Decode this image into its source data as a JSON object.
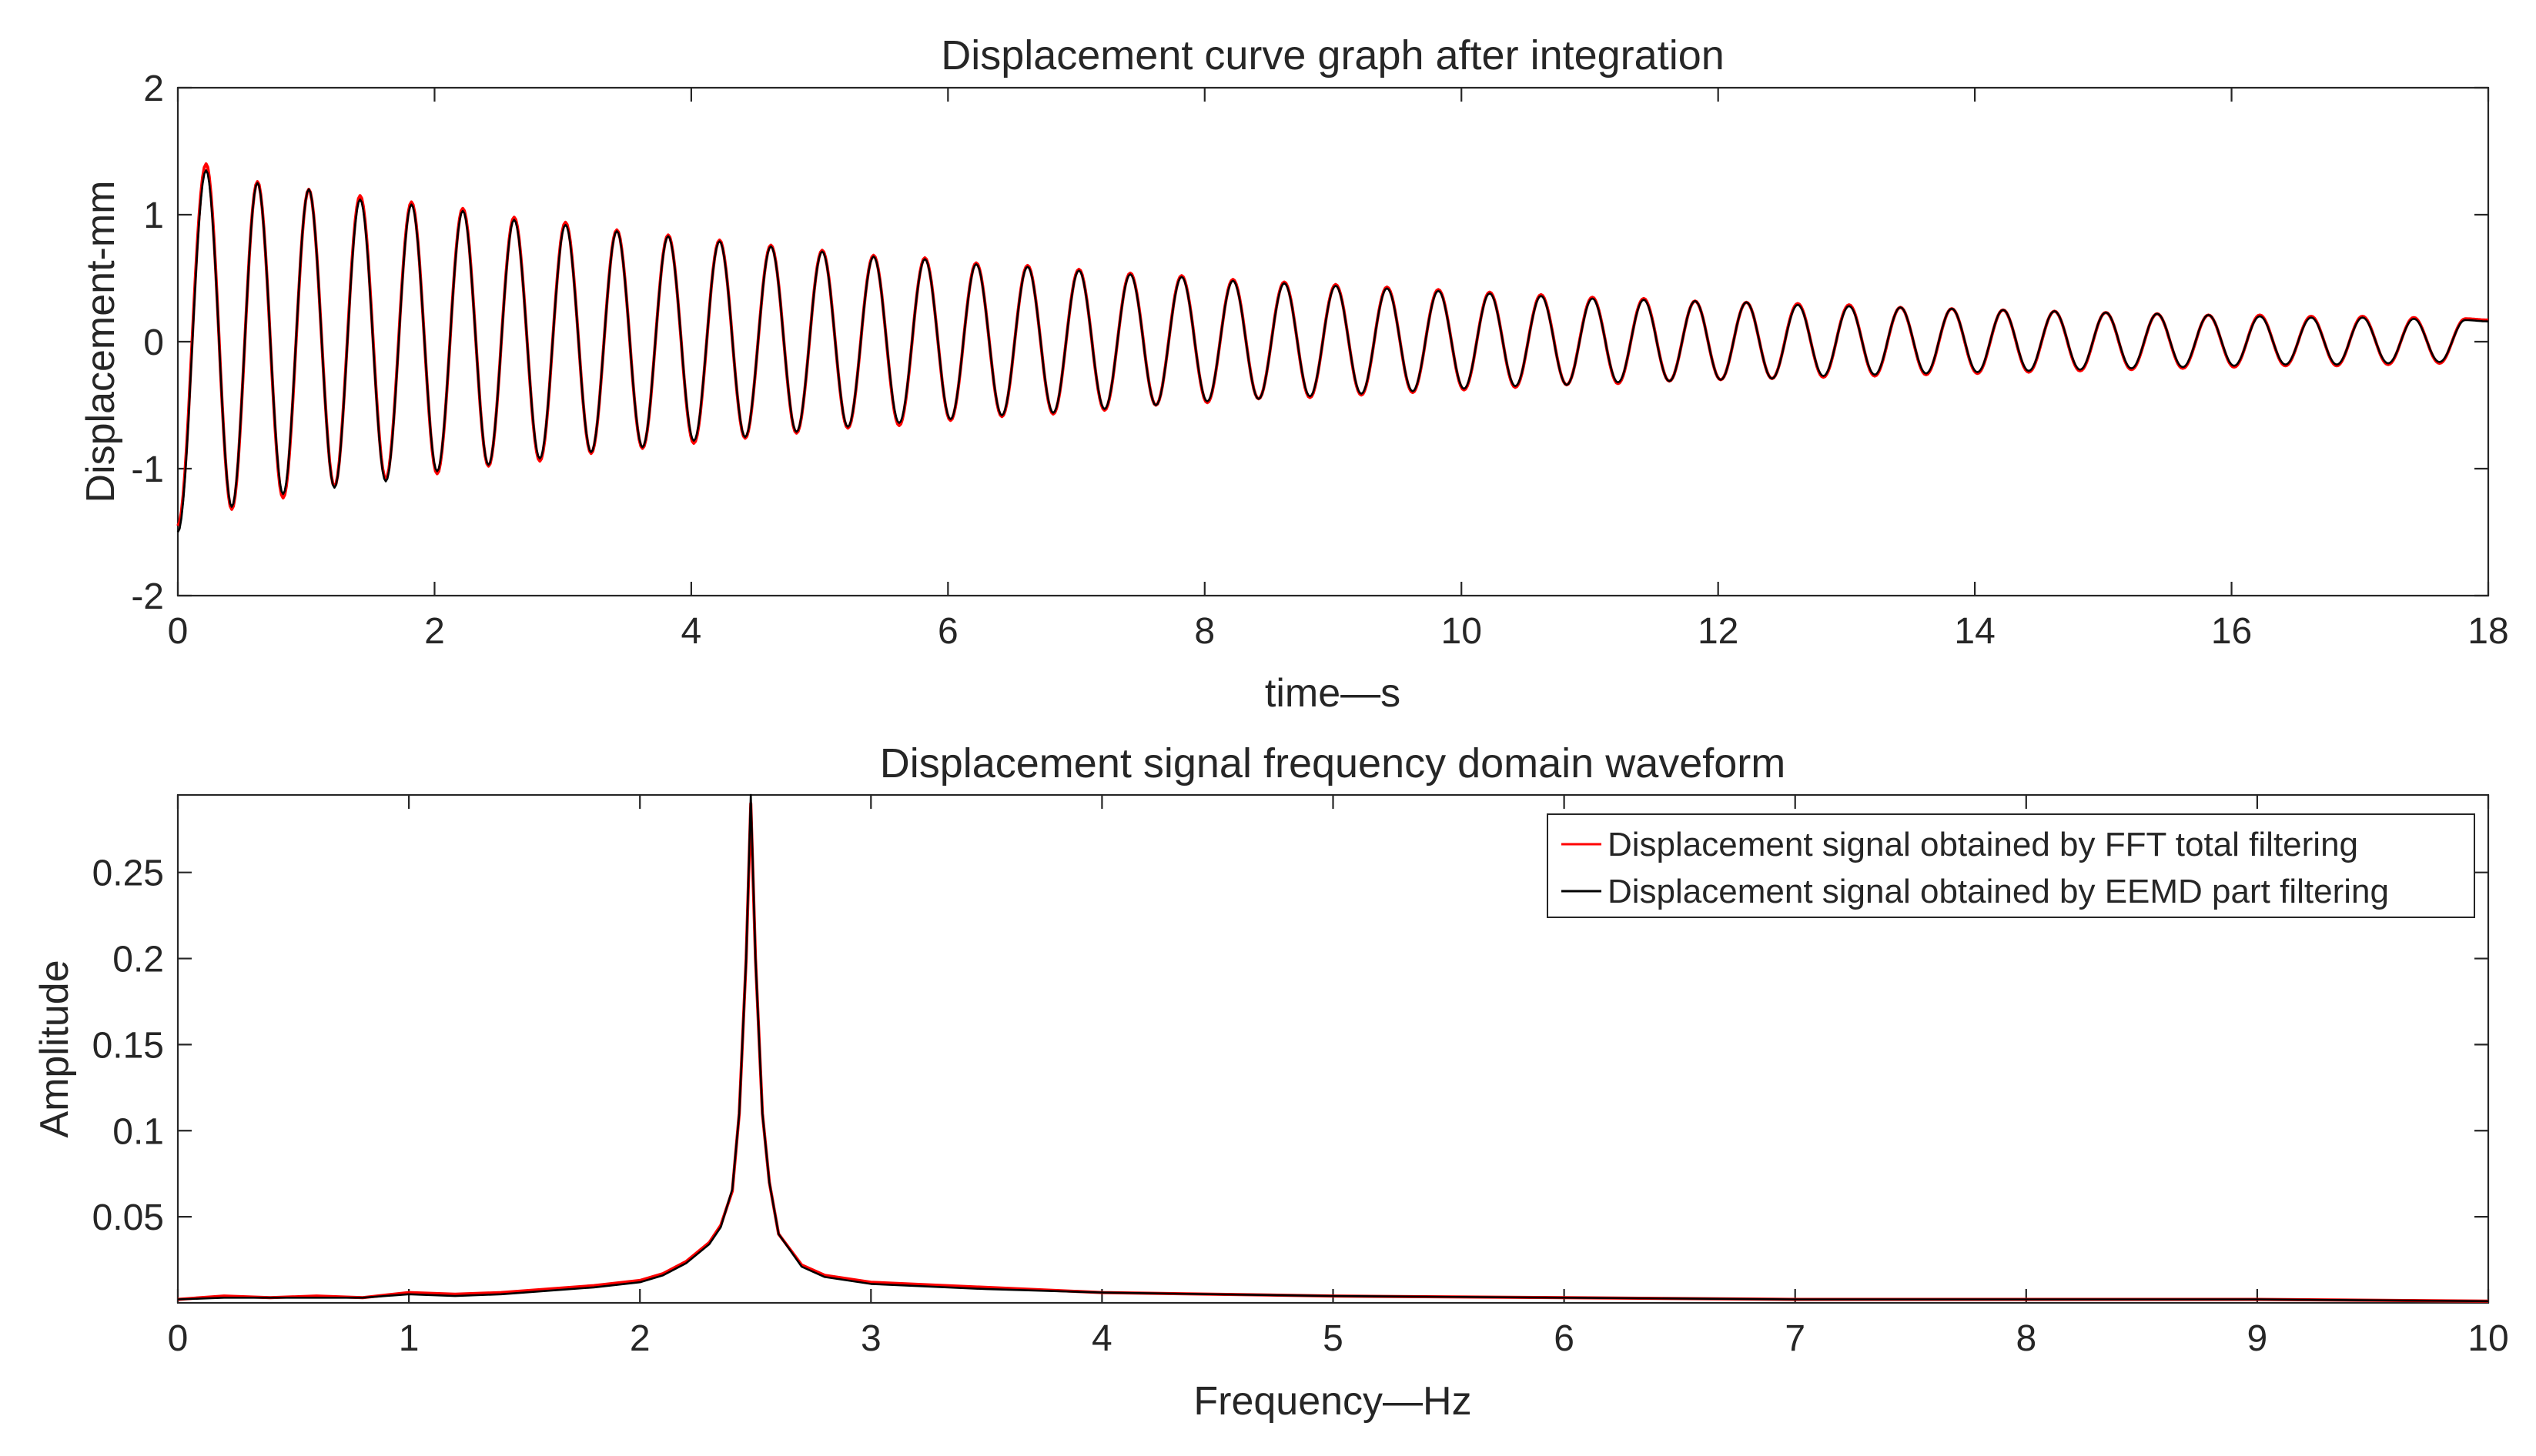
{
  "chart_data": [
    {
      "type": "line",
      "title": "Displacement curve graph after integration",
      "xlabel": "time—s",
      "ylabel": "Displacement-mm",
      "xlim": [
        0,
        18
      ],
      "ylim": [
        -2,
        2
      ],
      "x_ticks": [
        "0",
        "2",
        "4",
        "6",
        "8",
        "10",
        "12",
        "14",
        "16",
        "18"
      ],
      "y_ticks": [
        "2",
        "1",
        "0",
        "-1",
        "-2"
      ],
      "series": [
        {
          "color": "#ff0000",
          "x": [
            0,
            0.22,
            0.42,
            0.62,
            0.82,
            1.02,
            1.22,
            1.42,
            1.62,
            1.82,
            2.02,
            2.22,
            2.42,
            2.62,
            2.82,
            3.02,
            3.22,
            3.42,
            3.62,
            3.82,
            4.02,
            4.22,
            4.42,
            4.62,
            4.82,
            5.02,
            5.22,
            5.42,
            5.62,
            5.82,
            6.02,
            6.22,
            6.42,
            6.62,
            6.82,
            7.02,
            7.22,
            7.42,
            7.62,
            7.82,
            8.02,
            8.22,
            8.42,
            8.62,
            8.82,
            9.02,
            9.22,
            9.42,
            9.62,
            9.82,
            10.02,
            10.22,
            10.42,
            10.62,
            10.82,
            11.02,
            11.22,
            11.42,
            11.62,
            11.82,
            12.02,
            12.22,
            12.42,
            12.62,
            12.82,
            13.02,
            13.22,
            13.42,
            13.62,
            13.82,
            14.02,
            14.22,
            14.42,
            14.62,
            14.82,
            15.02,
            15.22,
            15.42,
            15.62,
            15.82,
            16.02,
            16.22,
            16.42,
            16.62,
            16.82,
            17.02,
            17.22,
            17.42,
            17.62,
            17.82,
            18.0
          ],
          "y": [
            -1.45,
            1.4,
            -1.32,
            1.26,
            -1.23,
            1.2,
            -1.14,
            1.15,
            -1.08,
            1.1,
            -1.04,
            1.05,
            -0.98,
            0.98,
            -0.94,
            0.94,
            -0.88,
            0.88,
            -0.84,
            0.84,
            -0.8,
            0.8,
            -0.76,
            0.76,
            -0.72,
            0.72,
            -0.68,
            0.68,
            -0.66,
            0.66,
            -0.62,
            0.62,
            -0.59,
            0.6,
            -0.57,
            0.57,
            -0.54,
            0.54,
            -0.5,
            0.52,
            -0.48,
            0.49,
            -0.45,
            0.47,
            -0.44,
            0.45,
            -0.42,
            0.43,
            -0.4,
            0.41,
            -0.38,
            0.39,
            -0.36,
            0.37,
            -0.34,
            0.35,
            -0.33,
            0.34,
            -0.31,
            0.32,
            -0.3,
            0.31,
            -0.29,
            0.3,
            -0.28,
            0.29,
            -0.27,
            0.27,
            -0.26,
            0.26,
            -0.25,
            0.25,
            -0.24,
            0.24,
            -0.23,
            0.23,
            -0.22,
            0.22,
            -0.21,
            0.21,
            -0.2,
            0.21,
            -0.19,
            0.2,
            -0.19,
            0.2,
            -0.18,
            0.19,
            -0.17,
            0.18,
            0.17
          ]
        },
        {
          "color": "#000000",
          "x": [
            0,
            0.22,
            0.42,
            0.62,
            0.82,
            1.02,
            1.22,
            1.42,
            1.62,
            1.82,
            2.02,
            2.22,
            2.42,
            2.62,
            2.82,
            3.02,
            3.22,
            3.42,
            3.62,
            3.82,
            4.02,
            4.22,
            4.42,
            4.62,
            4.82,
            5.02,
            5.22,
            5.42,
            5.62,
            5.82,
            6.02,
            6.22,
            6.42,
            6.62,
            6.82,
            7.02,
            7.22,
            7.42,
            7.62,
            7.82,
            8.02,
            8.22,
            8.42,
            8.62,
            8.82,
            9.02,
            9.22,
            9.42,
            9.62,
            9.82,
            10.02,
            10.22,
            10.42,
            10.62,
            10.82,
            11.02,
            11.22,
            11.42,
            11.62,
            11.82,
            12.02,
            12.22,
            12.42,
            12.62,
            12.82,
            13.02,
            13.22,
            13.42,
            13.62,
            13.82,
            14.02,
            14.22,
            14.42,
            14.62,
            14.82,
            15.02,
            15.22,
            15.42,
            15.62,
            15.82,
            16.02,
            16.22,
            16.42,
            16.62,
            16.82,
            17.02,
            17.22,
            17.42,
            17.62,
            17.82,
            18.0
          ],
          "y": [
            -1.5,
            1.35,
            -1.3,
            1.25,
            -1.2,
            1.2,
            -1.15,
            1.12,
            -1.1,
            1.08,
            -1.02,
            1.03,
            -0.97,
            0.96,
            -0.92,
            0.92,
            -0.87,
            0.87,
            -0.83,
            0.83,
            -0.78,
            0.79,
            -0.75,
            0.75,
            -0.71,
            0.71,
            -0.67,
            0.67,
            -0.64,
            0.65,
            -0.61,
            0.61,
            -0.58,
            0.59,
            -0.56,
            0.56,
            -0.53,
            0.53,
            -0.5,
            0.51,
            -0.47,
            0.48,
            -0.45,
            0.46,
            -0.43,
            0.44,
            -0.41,
            0.42,
            -0.39,
            0.4,
            -0.37,
            0.38,
            -0.35,
            0.36,
            -0.34,
            0.34,
            -0.32,
            0.33,
            -0.31,
            0.32,
            -0.3,
            0.31,
            -0.29,
            0.29,
            -0.27,
            0.28,
            -0.26,
            0.27,
            -0.25,
            0.26,
            -0.24,
            0.25,
            -0.23,
            0.24,
            -0.22,
            0.23,
            -0.21,
            0.22,
            -0.2,
            0.21,
            -0.19,
            0.2,
            -0.18,
            0.19,
            -0.18,
            0.19,
            -0.17,
            0.18,
            -0.16,
            0.17,
            0.16
          ]
        }
      ]
    },
    {
      "type": "line",
      "title": "Displacement signal frequency domain waveform",
      "xlabel": "Frequency—Hz",
      "ylabel": "Amplitude",
      "xlim": [
        0,
        10
      ],
      "ylim": [
        0,
        0.295
      ],
      "x_ticks": [
        "0",
        "1",
        "2",
        "3",
        "4",
        "5",
        "6",
        "7",
        "8",
        "9",
        "10"
      ],
      "y_ticks": [
        "0.25",
        "0.2",
        "0.15",
        "0.1",
        "0.05"
      ],
      "legend": "top-right",
      "series": [
        {
          "name": "Displacement signal obtained by FFT total filtering",
          "color": "#ff0000",
          "x": [
            0,
            0.2,
            0.4,
            0.6,
            0.8,
            1.0,
            1.2,
            1.4,
            1.6,
            1.8,
            2.0,
            2.1,
            2.2,
            2.3,
            2.35,
            2.4,
            2.43,
            2.46,
            2.48,
            2.5,
            2.53,
            2.56,
            2.6,
            2.7,
            2.8,
            3.0,
            3.5,
            4.0,
            5.0,
            6.0,
            7.0,
            8.0,
            9.0,
            10.0
          ],
          "y": [
            0.002,
            0.004,
            0.003,
            0.004,
            0.003,
            0.006,
            0.005,
            0.006,
            0.008,
            0.01,
            0.013,
            0.017,
            0.024,
            0.035,
            0.045,
            0.065,
            0.11,
            0.2,
            0.29,
            0.2,
            0.11,
            0.07,
            0.04,
            0.022,
            0.016,
            0.012,
            0.009,
            0.006,
            0.004,
            0.003,
            0.002,
            0.002,
            0.002,
            0.001
          ]
        },
        {
          "name": "Displacement signal obtained by EEMD part filtering",
          "color": "#000000",
          "x": [
            0,
            0.2,
            0.4,
            0.6,
            0.8,
            1.0,
            1.2,
            1.4,
            1.6,
            1.8,
            2.0,
            2.1,
            2.2,
            2.3,
            2.35,
            2.4,
            2.43,
            2.46,
            2.48,
            2.5,
            2.53,
            2.56,
            2.6,
            2.7,
            2.8,
            3.0,
            3.5,
            4.0,
            5.0,
            6.0,
            7.0,
            8.0,
            9.0,
            10.0
          ],
          "y": [
            0.002,
            0.003,
            0.003,
            0.003,
            0.003,
            0.005,
            0.004,
            0.005,
            0.007,
            0.009,
            0.012,
            0.016,
            0.023,
            0.034,
            0.044,
            0.066,
            0.11,
            0.2,
            0.295,
            0.2,
            0.11,
            0.07,
            0.04,
            0.021,
            0.015,
            0.011,
            0.008,
            0.006,
            0.004,
            0.003,
            0.002,
            0.002,
            0.002,
            0.001
          ]
        }
      ]
    }
  ]
}
